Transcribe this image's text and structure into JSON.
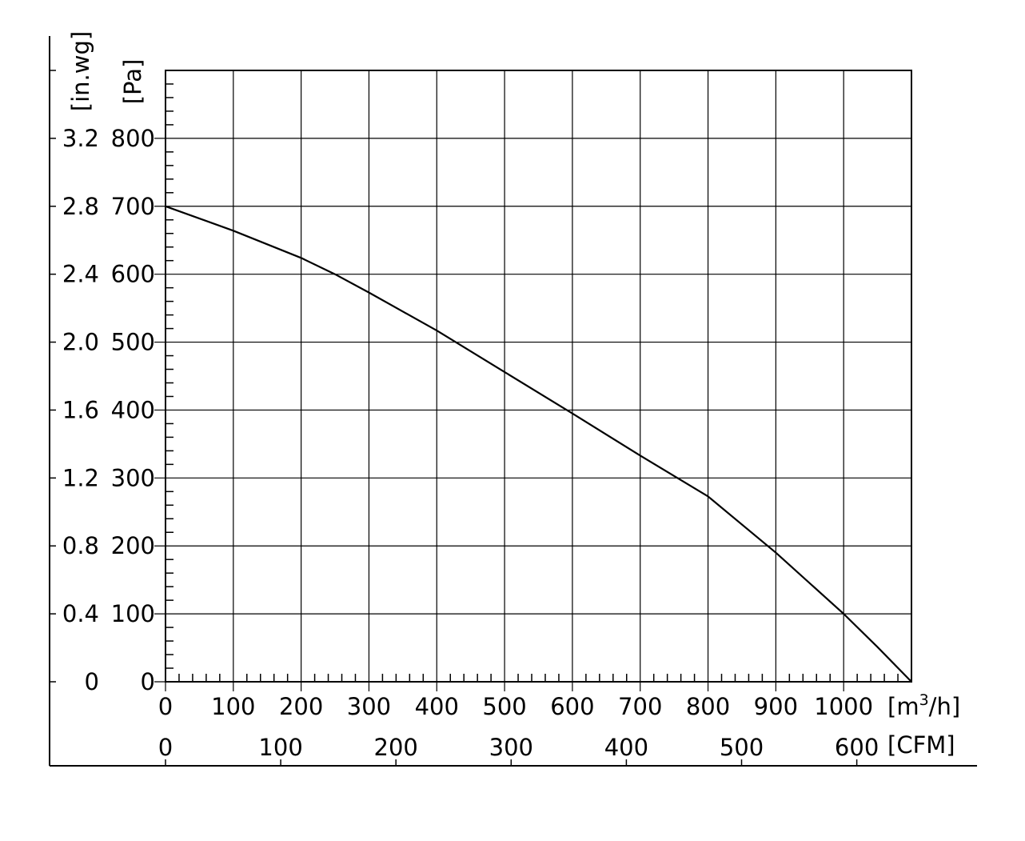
{
  "chart_data": {
    "type": "line",
    "title": "",
    "xlabel": "[m³/h]",
    "xlabel_parts": {
      "prefix": "[m",
      "sup": "3",
      "suffix": "/h]"
    },
    "ylabel": "[Pa]",
    "secondary_xlabel": "[CFM]",
    "secondary_ylabel": "[in.wg]",
    "xlim": [
      0,
      1100
    ],
    "ylim": [
      0,
      900
    ],
    "x_ticks": [
      0,
      100,
      200,
      300,
      400,
      500,
      600,
      700,
      800,
      900,
      1000
    ],
    "y_ticks": [
      0,
      100,
      200,
      300,
      400,
      500,
      600,
      700,
      800
    ],
    "secondary_x_ticks": [
      0,
      100,
      200,
      300,
      400,
      500,
      600
    ],
    "secondary_x_per_primary": 0.5886,
    "secondary_y_ticks": [
      {
        "label": "0",
        "pa": 0
      },
      {
        "label": "0.4",
        "pa": 100
      },
      {
        "label": "0.8",
        "pa": 200
      },
      {
        "label": "1.2",
        "pa": 300
      },
      {
        "label": "1.6",
        "pa": 400
      },
      {
        "label": "2.0",
        "pa": 500
      },
      {
        "label": "2.4",
        "pa": 600
      },
      {
        "label": "2.8",
        "pa": 700
      },
      {
        "label": "3.2",
        "pa": 800
      }
    ],
    "grid": true,
    "series": [
      {
        "x": [
          0,
          100,
          200,
          250,
          300,
          400,
          500,
          600,
          700,
          800,
          900,
          1000,
          1050,
          1100
        ],
        "y": [
          700,
          664,
          624,
          600,
          573,
          517,
          456,
          395,
          333,
          273,
          190,
          100,
          51,
          0
        ]
      }
    ]
  }
}
